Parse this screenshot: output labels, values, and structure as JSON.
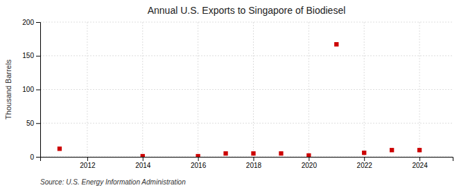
{
  "chart_data": {
    "type": "scatter",
    "title": "Annual U.S. Exports to Singapore of Biodiesel",
    "y_label": "Thousand Barrels",
    "annotations": [
      "Source: U.S. Energy Information Administration"
    ],
    "x": [
      2011,
      2014,
      2016,
      2017,
      2018,
      2019,
      2020,
      2021,
      2022,
      2023,
      2024
    ],
    "values": [
      12,
      1,
      1,
      5,
      5,
      5,
      2,
      167,
      6,
      10,
      10
    ],
    "color": "#cc0000",
    "marker": "square",
    "xlim": [
      2010.3,
      2025.2
    ],
    "xticks": [
      2012,
      2014,
      2016,
      2018,
      2020,
      2022,
      2024
    ],
    "ylim": [
      0,
      200
    ],
    "yticks": [
      0,
      50,
      100,
      150,
      200
    ],
    "grid": true
  }
}
